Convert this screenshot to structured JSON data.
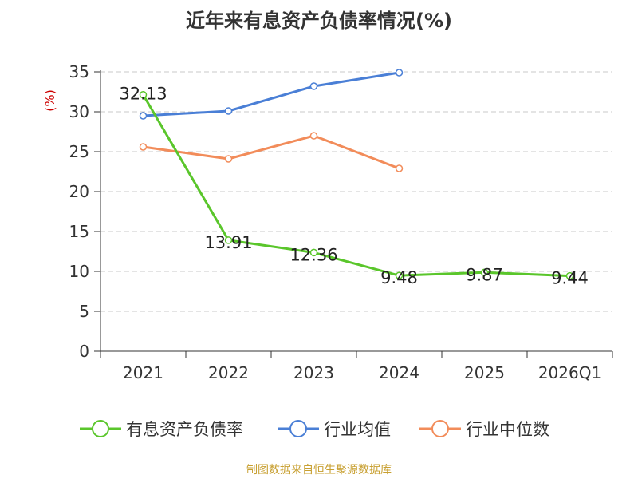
{
  "chart_data": {
    "type": "line",
    "title": "近年来有息资产负债率情况(%)",
    "ylabel": "(%)",
    "xlabel": "",
    "ylim": [
      0,
      35
    ],
    "yticks": [
      0,
      5,
      10,
      15,
      20,
      25,
      30,
      35
    ],
    "categories": [
      "2021",
      "2022",
      "2023",
      "2024",
      "2025",
      "2026Q1"
    ],
    "series": [
      {
        "name": "有息资产负债率",
        "color": "#5ac62b",
        "values": [
          32.13,
          13.91,
          12.36,
          9.48,
          9.87,
          9.44
        ],
        "labels": [
          "32.13",
          "13.91",
          "12.36",
          "9.48",
          "9.87",
          "9.44"
        ]
      },
      {
        "name": "行业均值",
        "color": "#4a7fd6",
        "values": [
          29.5,
          30.1,
          33.2,
          34.9,
          null,
          null
        ]
      },
      {
        "name": "行业中位数",
        "color": "#f28c5a",
        "values": [
          25.6,
          24.1,
          27.0,
          22.9,
          null,
          null
        ]
      }
    ],
    "grid": true,
    "legend_position": "bottom"
  },
  "source": "制图数据来自恒生聚源数据库"
}
